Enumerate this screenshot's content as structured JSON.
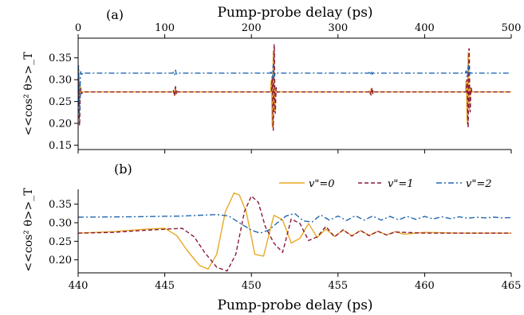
{
  "chart_data": [
    {
      "panel": "(a)",
      "type": "line",
      "xlabel": "Pump-probe delay (ps)",
      "ylabel": "<<cos² θ>>_T",
      "xlim": [
        0,
        500
      ],
      "ylim": [
        0.14,
        0.395
      ],
      "x_ticks": [
        0,
        100,
        200,
        300,
        400,
        500
      ],
      "x_tick_labels": [
        "0",
        "100",
        "200",
        "300",
        "400",
        "500"
      ],
      "y_ticks": [
        0.15,
        0.2,
        0.25,
        0.3,
        0.35
      ],
      "y_tick_labels": [
        "0.15",
        "0.20",
        "0.25",
        "0.30",
        "0.35"
      ],
      "series": [
        {
          "key": "v0",
          "color": "#e8a825",
          "dash": "solid",
          "baseline": 0.272,
          "features": [
            [
              0,
              0.24,
              0.33
            ],
            [
              112,
              0.262,
              0.283
            ],
            [
              225,
              0.17,
              0.375
            ],
            [
              338,
              0.265,
              0.28
            ],
            [
              450,
              0.18,
              0.37
            ]
          ]
        },
        {
          "key": "v1",
          "color": "#8b1a3a",
          "dash": "dash",
          "baseline": 0.272,
          "features": [
            [
              0,
              0.14,
              0.32
            ],
            [
              112,
              0.26,
              0.285
            ],
            [
              226,
              0.16,
              0.39
            ],
            [
              339,
              0.263,
              0.282
            ],
            [
              451,
              0.168,
              0.38
            ]
          ]
        },
        {
          "key": "v2",
          "color": "#2468b0",
          "dash": "dashdot",
          "baseline": 0.315,
          "features": [
            [
              0,
              0.15,
              0.335
            ],
            [
              112,
              0.31,
              0.322
            ],
            [
              225,
              0.3,
              0.335
            ],
            [
              338,
              0.31,
              0.32
            ],
            [
              450,
              0.3,
              0.335
            ]
          ]
        }
      ]
    },
    {
      "panel": "(b)",
      "type": "line",
      "xlabel": "Pump-probe delay (ps)",
      "ylabel": "<<cos² θ>>_T",
      "xlim": [
        440,
        465
      ],
      "ylim": [
        0.165,
        0.39
      ],
      "x_ticks": [
        440,
        445,
        450,
        455,
        460,
        465
      ],
      "x_tick_labels": [
        "440",
        "445",
        "450",
        "455",
        "460",
        "465"
      ],
      "y_ticks": [
        0.2,
        0.25,
        0.3,
        0.35
      ],
      "y_tick_labels": [
        "0.20",
        "0.25",
        "0.30",
        "0.35"
      ],
      "legend_position": "top-right",
      "series": [
        {
          "key": "v0",
          "name": "v\"=0",
          "color": "#e8a825",
          "dash": "solid",
          "x": [
            440,
            442,
            444,
            445,
            445.7,
            446.3,
            447,
            447.5,
            448,
            448.5,
            449,
            449.3,
            449.7,
            450.2,
            450.7,
            451.3,
            451.8,
            452.3,
            452.8,
            453.3,
            453.8,
            454.3,
            454.8,
            455.3,
            455.8,
            456.3,
            456.8,
            457.3,
            457.8,
            458.3,
            458.8,
            460,
            462,
            465
          ],
          "y": [
            0.272,
            0.276,
            0.283,
            0.285,
            0.265,
            0.225,
            0.185,
            0.175,
            0.215,
            0.33,
            0.38,
            0.375,
            0.33,
            0.215,
            0.21,
            0.32,
            0.308,
            0.245,
            0.258,
            0.298,
            0.26,
            0.283,
            0.263,
            0.28,
            0.265,
            0.279,
            0.266,
            0.277,
            0.267,
            0.276,
            0.269,
            0.274,
            0.272,
            0.272
          ]
        },
        {
          "key": "v1",
          "name": "v\"=1",
          "color": "#8b1a3a",
          "dash": "dash",
          "x": [
            440,
            442,
            444,
            446,
            446.7,
            447.3,
            448,
            448.6,
            449.1,
            449.6,
            450,
            450.4,
            450.8,
            451.3,
            451.8,
            452.3,
            452.8,
            453.3,
            453.8,
            454.3,
            454.8,
            455.3,
            455.8,
            456.3,
            456.8,
            457.3,
            457.8,
            458.3,
            460,
            462,
            465
          ],
          "y": [
            0.272,
            0.274,
            0.28,
            0.285,
            0.262,
            0.22,
            0.18,
            0.17,
            0.215,
            0.33,
            0.372,
            0.355,
            0.29,
            0.245,
            0.22,
            0.31,
            0.298,
            0.252,
            0.262,
            0.29,
            0.262,
            0.281,
            0.264,
            0.279,
            0.265,
            0.277,
            0.267,
            0.275,
            0.272,
            0.272,
            0.272
          ]
        },
        {
          "key": "v2",
          "name": "v\"=2",
          "color": "#2468b0",
          "dash": "dashdot",
          "x": [
            440,
            443,
            446,
            448,
            448.7,
            449.3,
            450,
            450.5,
            451,
            451.5,
            452,
            452.5,
            453,
            453.5,
            454,
            454.5,
            455,
            455.5,
            456,
            456.5,
            457,
            457.5,
            458,
            458.5,
            459,
            459.5,
            460,
            460.5,
            461,
            461.5,
            462,
            462.5,
            463,
            463.5,
            464,
            464.5,
            465
          ],
          "y": [
            0.315,
            0.316,
            0.318,
            0.322,
            0.318,
            0.3,
            0.28,
            0.272,
            0.28,
            0.3,
            0.318,
            0.325,
            0.305,
            0.302,
            0.321,
            0.307,
            0.318,
            0.306,
            0.319,
            0.307,
            0.318,
            0.307,
            0.317,
            0.308,
            0.317,
            0.309,
            0.317,
            0.31,
            0.316,
            0.311,
            0.316,
            0.312,
            0.315,
            0.313,
            0.315,
            0.313,
            0.314
          ]
        }
      ]
    }
  ]
}
